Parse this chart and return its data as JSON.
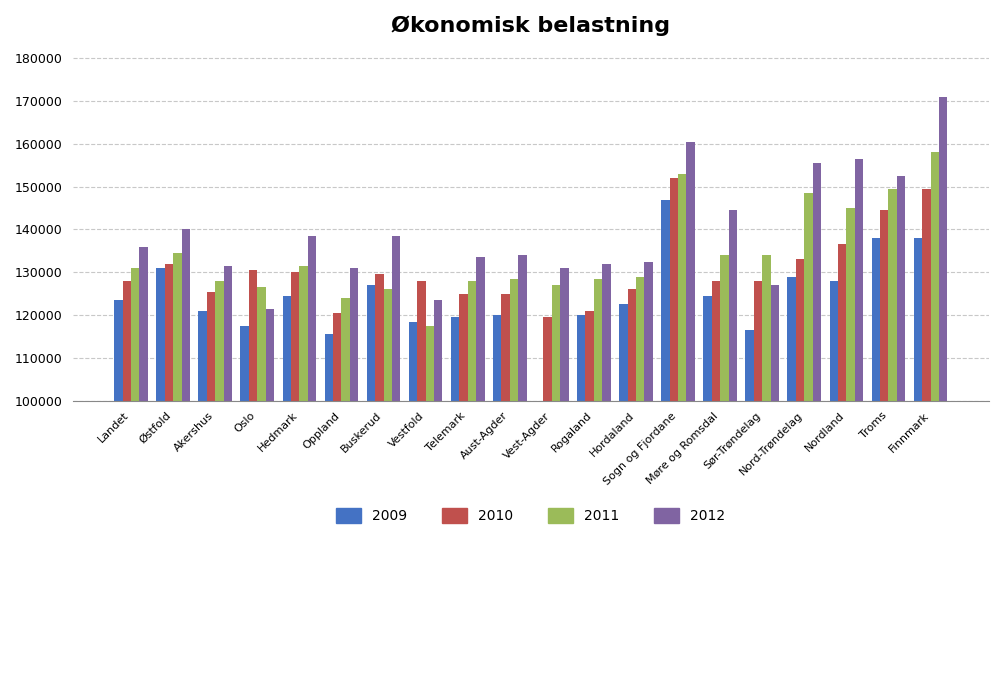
{
  "title": "Økonomisk belastning",
  "categories": [
    "Landet",
    "Østfold",
    "Akershus",
    "Oslo",
    "Hedmark",
    "Oppland",
    "Buskerud",
    "Vestfold",
    "Telemark",
    "Aust-Agder",
    "Vest-Agder",
    "Rogaland",
    "Hordaland",
    "Sogn og Fjordane",
    "Møre og Romsdal",
    "Sør-Trøndelag",
    "Nord-Trøndelag",
    "Nordland",
    "Troms",
    "Finnmark"
  ],
  "series": {
    "2009": [
      123500,
      131000,
      121000,
      117500,
      124500,
      115500,
      127000,
      118500,
      119500,
      120000,
      100000,
      120000,
      122500,
      147000,
      124500,
      116500,
      129000,
      128000,
      138000,
      138000
    ],
    "2010": [
      128000,
      132000,
      125500,
      130500,
      130000,
      120500,
      129500,
      128000,
      125000,
      125000,
      119500,
      121000,
      126000,
      152000,
      128000,
      128000,
      133000,
      136500,
      144500,
      149500
    ],
    "2011": [
      131000,
      134500,
      128000,
      126500,
      131500,
      124000,
      126000,
      117500,
      128000,
      128500,
      127000,
      128500,
      129000,
      153000,
      134000,
      134000,
      148500,
      145000,
      149500,
      158000
    ],
    "2012": [
      136000,
      140000,
      131500,
      121500,
      138500,
      131000,
      138500,
      123500,
      133500,
      134000,
      131000,
      132000,
      132500,
      160500,
      144500,
      127000,
      155500,
      156500,
      152500,
      171000
    ]
  },
  "colors": {
    "2009": "#4472C4",
    "2010": "#C0504D",
    "2011": "#9BBB59",
    "2012": "#8064A2"
  },
  "ylim": [
    100000,
    183000
  ],
  "yticks": [
    100000,
    110000,
    120000,
    130000,
    140000,
    150000,
    160000,
    170000,
    180000
  ],
  "legend_labels": [
    "2009",
    "2010",
    "2011",
    "2012"
  ],
  "title_fontsize": 16,
  "bar_width": 0.2,
  "background_color": "#ffffff",
  "plot_bg_color": "#f9f9f9",
  "grid_color": "#c8c8c8",
  "xlabel_fontsize": 8,
  "ylabel_fontsize": 9,
  "legend_fontsize": 10
}
